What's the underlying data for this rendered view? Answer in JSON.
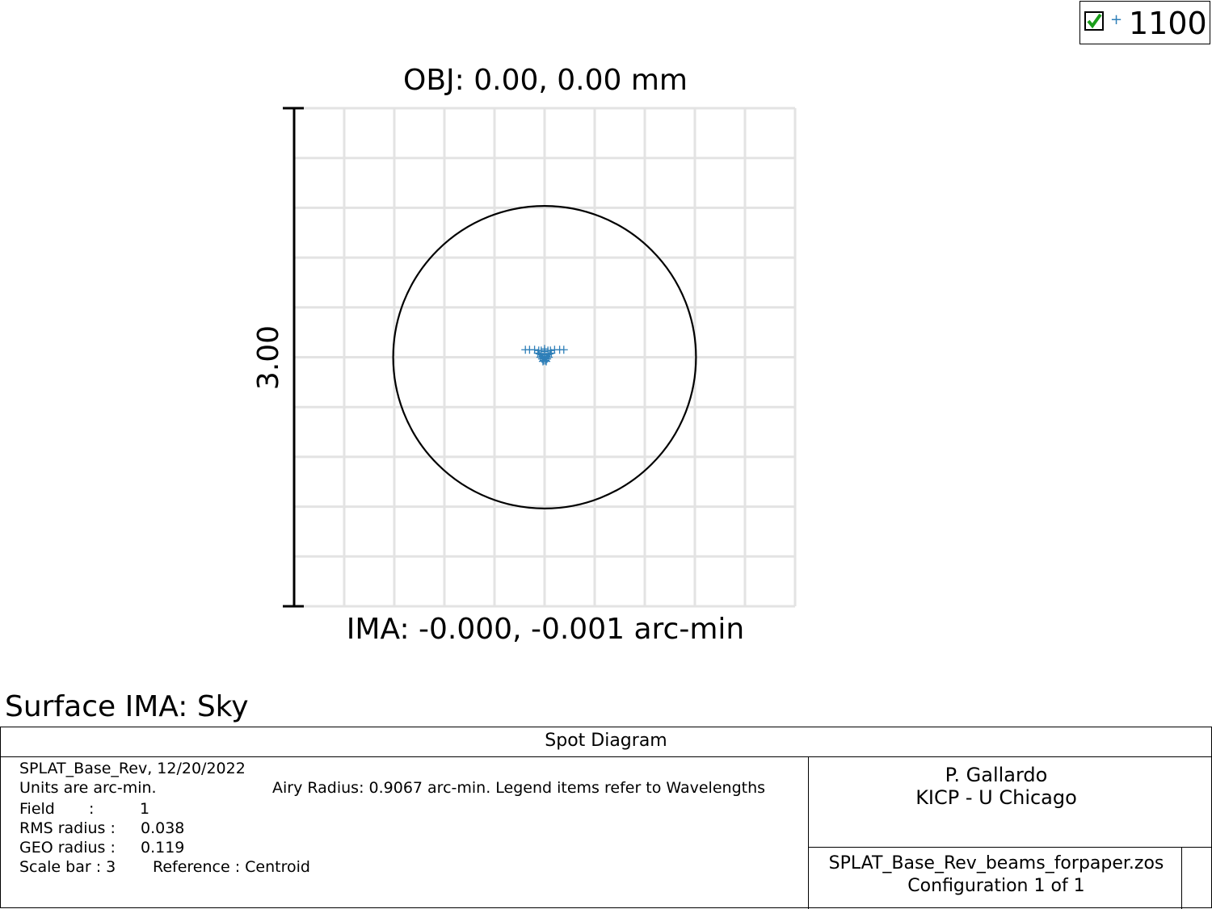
{
  "legend": {
    "checked": true,
    "marker_color": "#2e7fb8",
    "label": "1100"
  },
  "plot": {
    "title": "OBJ: 0.00, 0.00 mm",
    "image_label": "IMA: -0.000, -0.001 arc-min",
    "scale_label": "3.00",
    "surface_label": "Surface IMA: Sky"
  },
  "chart_data": {
    "type": "scatter",
    "series": [
      {
        "name": "1100",
        "color": "#2e7fb8",
        "marker": "plus",
        "points": [
          [
            0.0,
            0.0
          ],
          [
            0.01,
            0.005
          ],
          [
            -0.01,
            0.005
          ],
          [
            0.015,
            -0.01
          ],
          [
            -0.015,
            -0.01
          ],
          [
            0.02,
            0.015
          ],
          [
            -0.02,
            0.015
          ],
          [
            0.005,
            -0.02
          ],
          [
            -0.005,
            -0.02
          ],
          [
            0.0,
            0.02
          ],
          [
            0.025,
            0.0
          ],
          [
            -0.025,
            0.0
          ],
          [
            0.03,
            0.02
          ],
          [
            -0.03,
            0.02
          ],
          [
            0.01,
            -0.025
          ],
          [
            -0.01,
            -0.025
          ],
          [
            0.04,
            0.025
          ],
          [
            -0.04,
            0.025
          ],
          [
            0.06,
            0.045
          ],
          [
            -0.06,
            0.045
          ],
          [
            0.09,
            0.045
          ],
          [
            -0.09,
            0.045
          ],
          [
            0.115,
            0.045
          ],
          [
            -0.115,
            0.045
          ],
          [
            0.0,
            0.05
          ],
          [
            0.02,
            0.04
          ],
          [
            -0.02,
            0.04
          ],
          [
            0.035,
            0.04
          ],
          [
            -0.035,
            0.04
          ],
          [
            0.0,
            0.035
          ]
        ]
      }
    ],
    "airy_radius": 0.9067,
    "scale_bar": 3,
    "xlim": [
      -1.5,
      1.5
    ],
    "ylim": [
      -1.5,
      1.5
    ],
    "grid": true,
    "grid_divisions": 10
  },
  "info": {
    "title": "Spot Diagram",
    "file_line": "SPLAT_Base_Rev, 12/20/2022",
    "units": "Units are arc-min.",
    "airy": "Airy Radius: 0.9067 arc-min. Legend items refer to Wavelengths",
    "field_label": "Field",
    "field_sep": ":",
    "field_value": "1",
    "rms_label": "RMS radius :",
    "rms_value": "0.038",
    "geo_label": "GEO radius :",
    "geo_value": "0.119",
    "scale_bar": "Scale bar  : 3",
    "reference": "Reference  : Centroid",
    "author": "P. Gallardo",
    "affiliation": "KICP - U Chicago",
    "filename": "SPLAT_Base_Rev_beams_forpaper.zos",
    "configuration": "Configuration 1 of 1"
  }
}
